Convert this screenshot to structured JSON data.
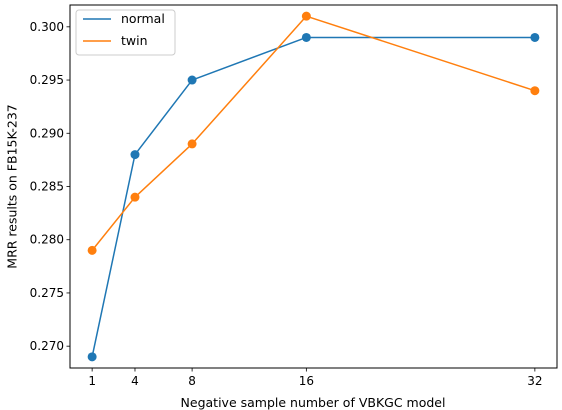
{
  "chart_data": {
    "type": "line",
    "title": "",
    "xlabel": "Negative sample number of VBKGC model",
    "ylabel": "MRR results on FB15K-237",
    "x": [
      1,
      4,
      8,
      16,
      32
    ],
    "xticks": [
      1,
      4,
      8,
      16,
      32
    ],
    "xlim": [
      -0.55,
      33.55
    ],
    "ylim": [
      0.26795,
      0.30205
    ],
    "yticks": [
      0.27,
      0.275,
      0.28,
      0.285,
      0.29,
      0.295,
      0.3
    ],
    "ytick_labels": [
      "0.270",
      "0.275",
      "0.280",
      "0.285",
      "0.290",
      "0.295",
      "0.300"
    ],
    "grid": false,
    "legend_position": "top-left",
    "series": [
      {
        "name": "normal",
        "color": "#1f77b4",
        "values": [
          0.269,
          0.288,
          0.295,
          0.299,
          0.299
        ]
      },
      {
        "name": "twin",
        "color": "#ff7f0e",
        "values": [
          0.279,
          0.284,
          0.289,
          0.301,
          0.294
        ]
      }
    ]
  }
}
